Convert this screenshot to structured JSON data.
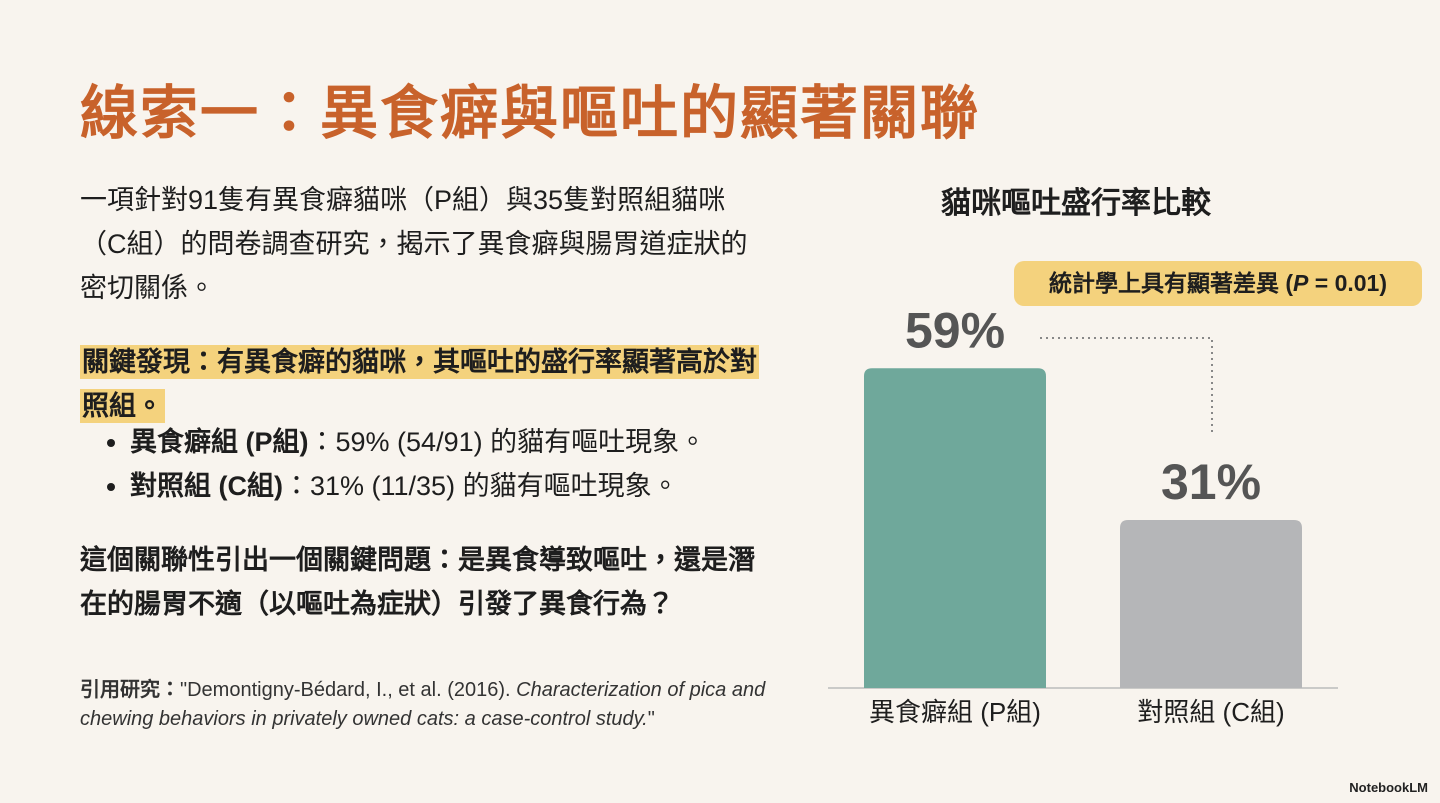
{
  "title": "線索一：異食癖與嘔吐的顯著關聯",
  "intro": "一項針對91隻有異食癖貓咪（P組）與35隻對照組貓咪（C組）的問卷調查研究，揭示了異食癖與腸胃道症狀的密切關係。",
  "key_finding": "關鍵發現：有異食癖的貓咪，其嘔吐的盛行率顯著高於對照組。",
  "bullets": [
    {
      "label": "異食癖組 (P組)",
      "text": "：59% (54/91) 的貓有嘔吐現象。"
    },
    {
      "label": "對照組 (C組)",
      "text": "：31% (11/35) 的貓有嘔吐現象。"
    }
  ],
  "question": "這個關聯性引出一個關鍵問題：是異食導致嘔吐，還是潛在的腸胃不適（以嘔吐為症狀）引發了異食行為？",
  "citation": {
    "label": "引用研究：",
    "prefix": "\"Demontigny-Bédard, I., et al. (2016). ",
    "italic": "Characterization of pica and chewing behaviors in privately owned cats: a case-control study.",
    "suffix": "\""
  },
  "footer": "NotebookLM",
  "chart_data": {
    "type": "bar",
    "title": "貓咪嘔吐盛行率比較",
    "categories": [
      "異食癖組 (P組)",
      "對照組 (C組)"
    ],
    "values": [
      59,
      31
    ],
    "value_labels": [
      "59%",
      "31%"
    ],
    "colors": [
      "#6fa89b",
      "#b5b6b8"
    ],
    "annotation": [
      "統計學上具有顯著差異 (",
      "P",
      " = 0.01)"
    ]
  }
}
